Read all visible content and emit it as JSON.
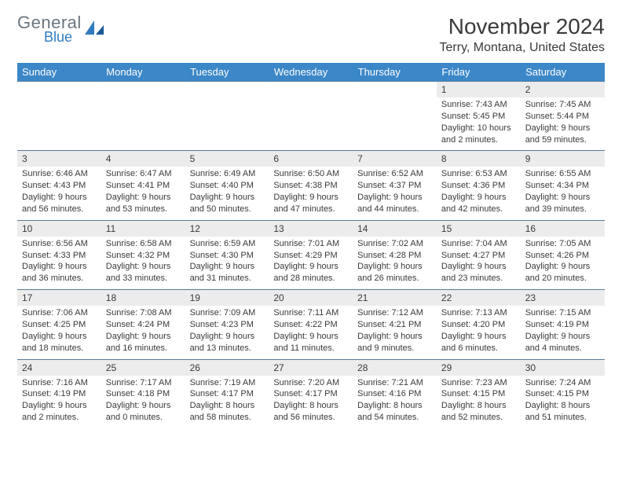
{
  "logo": {
    "general": "General",
    "blue": "Blue"
  },
  "title": "November 2024",
  "location": "Terry, Montana, United States",
  "colors": {
    "header_bg": "#3b87c8",
    "header_text": "#ffffff",
    "daynum_bg": "#ececec",
    "border": "#5a7a99",
    "text": "#3a3a3a",
    "logo_gray": "#6b7680",
    "logo_blue": "#2f7bbf"
  },
  "weekdays": [
    "Sunday",
    "Monday",
    "Tuesday",
    "Wednesday",
    "Thursday",
    "Friday",
    "Saturday"
  ],
  "weeks": [
    [
      null,
      null,
      null,
      null,
      null,
      {
        "n": "1",
        "sr": "7:43 AM",
        "ss": "5:45 PM",
        "dl": "10 hours and 2 minutes."
      },
      {
        "n": "2",
        "sr": "7:45 AM",
        "ss": "5:44 PM",
        "dl": "9 hours and 59 minutes."
      }
    ],
    [
      {
        "n": "3",
        "sr": "6:46 AM",
        "ss": "4:43 PM",
        "dl": "9 hours and 56 minutes."
      },
      {
        "n": "4",
        "sr": "6:47 AM",
        "ss": "4:41 PM",
        "dl": "9 hours and 53 minutes."
      },
      {
        "n": "5",
        "sr": "6:49 AM",
        "ss": "4:40 PM",
        "dl": "9 hours and 50 minutes."
      },
      {
        "n": "6",
        "sr": "6:50 AM",
        "ss": "4:38 PM",
        "dl": "9 hours and 47 minutes."
      },
      {
        "n": "7",
        "sr": "6:52 AM",
        "ss": "4:37 PM",
        "dl": "9 hours and 44 minutes."
      },
      {
        "n": "8",
        "sr": "6:53 AM",
        "ss": "4:36 PM",
        "dl": "9 hours and 42 minutes."
      },
      {
        "n": "9",
        "sr": "6:55 AM",
        "ss": "4:34 PM",
        "dl": "9 hours and 39 minutes."
      }
    ],
    [
      {
        "n": "10",
        "sr": "6:56 AM",
        "ss": "4:33 PM",
        "dl": "9 hours and 36 minutes."
      },
      {
        "n": "11",
        "sr": "6:58 AM",
        "ss": "4:32 PM",
        "dl": "9 hours and 33 minutes."
      },
      {
        "n": "12",
        "sr": "6:59 AM",
        "ss": "4:30 PM",
        "dl": "9 hours and 31 minutes."
      },
      {
        "n": "13",
        "sr": "7:01 AM",
        "ss": "4:29 PM",
        "dl": "9 hours and 28 minutes."
      },
      {
        "n": "14",
        "sr": "7:02 AM",
        "ss": "4:28 PM",
        "dl": "9 hours and 26 minutes."
      },
      {
        "n": "15",
        "sr": "7:04 AM",
        "ss": "4:27 PM",
        "dl": "9 hours and 23 minutes."
      },
      {
        "n": "16",
        "sr": "7:05 AM",
        "ss": "4:26 PM",
        "dl": "9 hours and 20 minutes."
      }
    ],
    [
      {
        "n": "17",
        "sr": "7:06 AM",
        "ss": "4:25 PM",
        "dl": "9 hours and 18 minutes."
      },
      {
        "n": "18",
        "sr": "7:08 AM",
        "ss": "4:24 PM",
        "dl": "9 hours and 16 minutes."
      },
      {
        "n": "19",
        "sr": "7:09 AM",
        "ss": "4:23 PM",
        "dl": "9 hours and 13 minutes."
      },
      {
        "n": "20",
        "sr": "7:11 AM",
        "ss": "4:22 PM",
        "dl": "9 hours and 11 minutes."
      },
      {
        "n": "21",
        "sr": "7:12 AM",
        "ss": "4:21 PM",
        "dl": "9 hours and 9 minutes."
      },
      {
        "n": "22",
        "sr": "7:13 AM",
        "ss": "4:20 PM",
        "dl": "9 hours and 6 minutes."
      },
      {
        "n": "23",
        "sr": "7:15 AM",
        "ss": "4:19 PM",
        "dl": "9 hours and 4 minutes."
      }
    ],
    [
      {
        "n": "24",
        "sr": "7:16 AM",
        "ss": "4:19 PM",
        "dl": "9 hours and 2 minutes."
      },
      {
        "n": "25",
        "sr": "7:17 AM",
        "ss": "4:18 PM",
        "dl": "9 hours and 0 minutes."
      },
      {
        "n": "26",
        "sr": "7:19 AM",
        "ss": "4:17 PM",
        "dl": "8 hours and 58 minutes."
      },
      {
        "n": "27",
        "sr": "7:20 AM",
        "ss": "4:17 PM",
        "dl": "8 hours and 56 minutes."
      },
      {
        "n": "28",
        "sr": "7:21 AM",
        "ss": "4:16 PM",
        "dl": "8 hours and 54 minutes."
      },
      {
        "n": "29",
        "sr": "7:23 AM",
        "ss": "4:15 PM",
        "dl": "8 hours and 52 minutes."
      },
      {
        "n": "30",
        "sr": "7:24 AM",
        "ss": "4:15 PM",
        "dl": "8 hours and 51 minutes."
      }
    ]
  ],
  "labels": {
    "sunrise": "Sunrise:",
    "sunset": "Sunset:",
    "daylight": "Daylight:"
  }
}
